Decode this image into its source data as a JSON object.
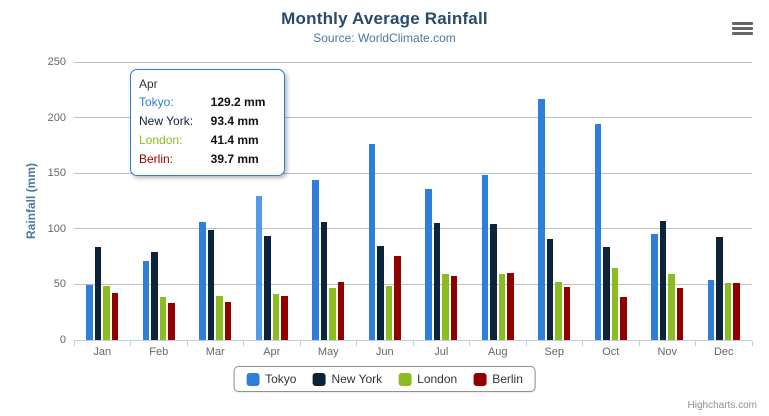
{
  "chart_data": {
    "type": "bar",
    "title": "Monthly Average Rainfall",
    "subtitle": "Source: WorldClimate.com",
    "xlabel": "",
    "ylabel": "Rainfall (mm)",
    "ylim": [
      0,
      250
    ],
    "yticks": [
      0,
      50,
      100,
      150,
      200,
      250
    ],
    "grid": true,
    "legend_position": "bottom-center",
    "categories": [
      "Jan",
      "Feb",
      "Mar",
      "Apr",
      "May",
      "Jun",
      "Jul",
      "Aug",
      "Sep",
      "Oct",
      "Nov",
      "Dec"
    ],
    "series": [
      {
        "name": "Tokyo",
        "color": "#2f7ed8",
        "values": [
          49.9,
          71.5,
          106.4,
          129.2,
          144.0,
          176.0,
          135.6,
          148.5,
          216.4,
          194.1,
          95.6,
          54.4
        ]
      },
      {
        "name": "New York",
        "color": "#0d233a",
        "values": [
          83.6,
          78.8,
          98.5,
          93.4,
          106.0,
          84.5,
          105.0,
          104.3,
          91.2,
          83.5,
          106.6,
          92.3
        ]
      },
      {
        "name": "London",
        "color": "#8bbc21",
        "values": [
          48.9,
          38.8,
          39.3,
          41.4,
          47.0,
          48.3,
          59.0,
          59.6,
          52.4,
          65.2,
          59.3,
          51.2
        ]
      },
      {
        "name": "Berlin",
        "color": "#910000",
        "values": [
          42.4,
          33.2,
          34.5,
          39.7,
          52.6,
          75.5,
          57.4,
          60.4,
          47.6,
          39.1,
          46.8,
          51.1
        ]
      }
    ]
  },
  "tooltip": {
    "header": "Apr",
    "rows": [
      {
        "label": "Tokyo:",
        "value": "129.2 mm"
      },
      {
        "label": "New York:",
        "value": "93.4 mm"
      },
      {
        "label": "London:",
        "value": "41.4 mm"
      },
      {
        "label": "Berlin:",
        "value": "39.7 mm"
      }
    ],
    "border_color": "#2f7ed8",
    "highlighted": {
      "series_index": 0,
      "category_index": 3,
      "hover_color": "#549ae8"
    }
  },
  "credits": {
    "label": "Highcharts.com"
  },
  "colors": {
    "title": "#274b6d",
    "subtitle": "#4d759e",
    "axis_title": "#4d759e",
    "axis_labels": "#666666",
    "gridline": "#c0c0c0",
    "axis_line": "#c0d0e0",
    "legend_border": "#909090",
    "legend_text": "#333333",
    "credits_text": "#909090"
  }
}
